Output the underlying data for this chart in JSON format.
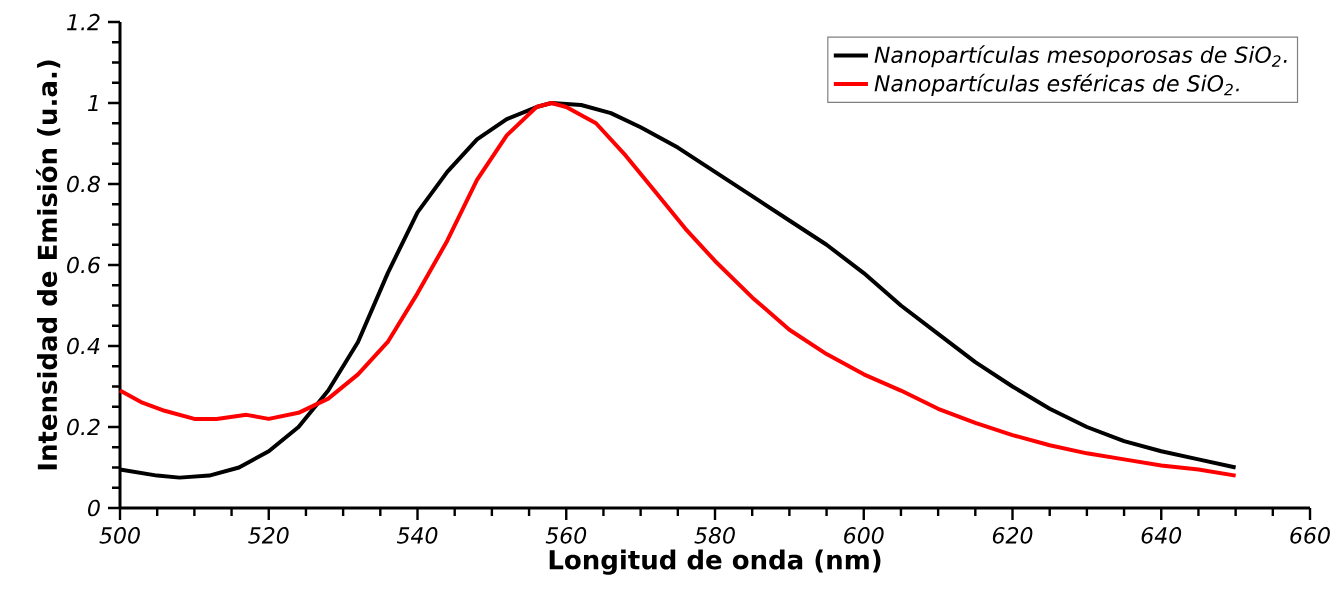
{
  "chart_data": {
    "type": "line",
    "xlabel": "Longitud de onda (nm)",
    "ylabel": "Intensidad de Emisión (u.a.)",
    "xlim": [
      500,
      660
    ],
    "xticks": [
      500,
      520,
      540,
      560,
      580,
      600,
      620,
      640,
      660
    ],
    "ylim": [
      0,
      1.2
    ],
    "yticks": [
      0,
      0.2,
      0.4,
      0.6,
      0.8,
      1,
      1.2
    ],
    "grid": false,
    "legend": "top right",
    "marker": "none",
    "line_style": "solid",
    "series": [
      {
        "name": "Nanopartículas mesoporosas de SiO$_{2}$.",
        "color": "#000000",
        "x": [
          500,
          505,
          508,
          512,
          516,
          520,
          524,
          528,
          532,
          536,
          540,
          544,
          548,
          552,
          556,
          558,
          562,
          566,
          570,
          575,
          580,
          585,
          590,
          595,
          600,
          605,
          610,
          615,
          620,
          625,
          630,
          635,
          640,
          645,
          650
        ],
        "values": [
          0.095,
          0.08,
          0.075,
          0.08,
          0.1,
          0.14,
          0.2,
          0.29,
          0.41,
          0.58,
          0.73,
          0.83,
          0.91,
          0.96,
          0.99,
          1.0,
          0.995,
          0.975,
          0.94,
          0.89,
          0.83,
          0.77,
          0.71,
          0.65,
          0.58,
          0.5,
          0.43,
          0.36,
          0.3,
          0.245,
          0.2,
          0.165,
          0.14,
          0.12,
          0.1
        ]
      },
      {
        "name": "Nanopartículas esféricas de SiO$_{2}$.",
        "color": "#ff0000",
        "x": [
          500,
          503,
          506,
          510,
          513,
          517,
          520,
          524,
          528,
          532,
          536,
          540,
          544,
          548,
          552,
          556,
          558,
          560,
          564,
          568,
          572,
          576,
          580,
          585,
          590,
          595,
          600,
          605,
          610,
          615,
          620,
          625,
          630,
          635,
          640,
          645,
          650
        ],
        "values": [
          0.29,
          0.26,
          0.24,
          0.22,
          0.22,
          0.23,
          0.22,
          0.235,
          0.27,
          0.33,
          0.41,
          0.53,
          0.66,
          0.81,
          0.92,
          0.99,
          1.0,
          0.99,
          0.95,
          0.87,
          0.78,
          0.69,
          0.61,
          0.52,
          0.44,
          0.38,
          0.33,
          0.29,
          0.245,
          0.21,
          0.18,
          0.155,
          0.135,
          0.12,
          0.105,
          0.095,
          0.08
        ]
      }
    ]
  }
}
